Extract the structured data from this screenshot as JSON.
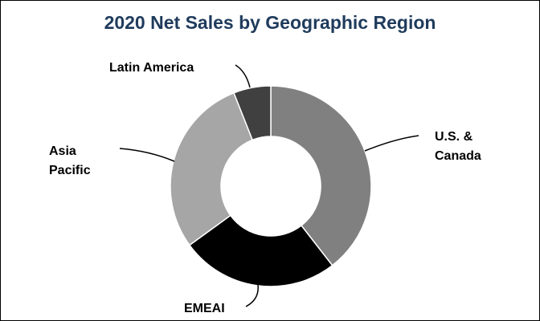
{
  "chart_data": {
    "type": "donut",
    "title": "2020 Net Sales by Geographic Region",
    "categories": [
      "U.S. & Canada",
      "EMEAI",
      "Asia Pacific",
      "Latin America"
    ],
    "values": [
      39.5,
      25.5,
      29,
      6
    ],
    "colors": [
      "#808080",
      "#000000",
      "#a6a6a6",
      "#404040"
    ]
  }
}
